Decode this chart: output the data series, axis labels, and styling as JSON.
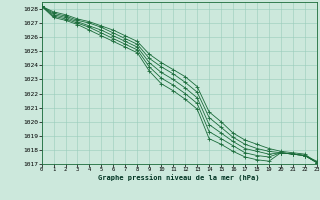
{
  "title": "Graphe pression niveau de la mer (hPa)",
  "bg_color": "#cce8dc",
  "grid_color": "#99ccbb",
  "line_color": "#1a6b3a",
  "xlim": [
    0,
    23
  ],
  "ylim": [
    1017,
    1028.5
  ],
  "xticks": [
    0,
    1,
    2,
    3,
    4,
    5,
    6,
    7,
    8,
    9,
    10,
    11,
    12,
    13,
    14,
    15,
    16,
    17,
    18,
    19,
    20,
    21,
    22,
    23
  ],
  "yticks": [
    1017,
    1018,
    1019,
    1020,
    1021,
    1022,
    1023,
    1024,
    1025,
    1026,
    1027,
    1028
  ],
  "series": [
    [
      1028.2,
      1027.4,
      1027.2,
      1026.9,
      1026.5,
      1026.1,
      1025.7,
      1025.3,
      1024.9,
      1023.6,
      1022.7,
      1022.2,
      1021.6,
      1020.9,
      1018.8,
      1018.4,
      1017.9,
      1017.5,
      1017.3,
      1017.2,
      1017.8,
      1017.7,
      1017.6,
      1017.2
    ],
    [
      1028.2,
      1027.5,
      1027.3,
      1027.0,
      1026.7,
      1026.3,
      1025.9,
      1025.5,
      1025.1,
      1023.9,
      1023.1,
      1022.6,
      1022.0,
      1021.3,
      1019.3,
      1018.8,
      1018.3,
      1017.8,
      1017.6,
      1017.5,
      1017.8,
      1017.7,
      1017.6,
      1017.1
    ],
    [
      1028.2,
      1027.6,
      1027.4,
      1027.1,
      1026.8,
      1026.5,
      1026.1,
      1025.7,
      1025.3,
      1024.2,
      1023.5,
      1023.0,
      1022.4,
      1021.7,
      1019.8,
      1019.2,
      1018.6,
      1018.1,
      1017.9,
      1017.7,
      1017.8,
      1017.7,
      1017.6,
      1017.1
    ],
    [
      1028.2,
      1027.7,
      1027.5,
      1027.2,
      1027.0,
      1026.7,
      1026.3,
      1025.9,
      1025.5,
      1024.5,
      1023.9,
      1023.4,
      1022.8,
      1022.1,
      1020.3,
      1019.6,
      1018.9,
      1018.4,
      1018.1,
      1017.9,
      1017.8,
      1017.7,
      1017.6,
      1017.1
    ],
    [
      1028.2,
      1027.8,
      1027.6,
      1027.3,
      1027.1,
      1026.8,
      1026.5,
      1026.1,
      1025.7,
      1024.8,
      1024.2,
      1023.7,
      1023.2,
      1022.5,
      1020.7,
      1020.0,
      1019.2,
      1018.7,
      1018.4,
      1018.1,
      1017.9,
      1017.8,
      1017.7,
      1017.1
    ]
  ],
  "figsize": [
    3.2,
    2.0
  ],
  "dpi": 100
}
